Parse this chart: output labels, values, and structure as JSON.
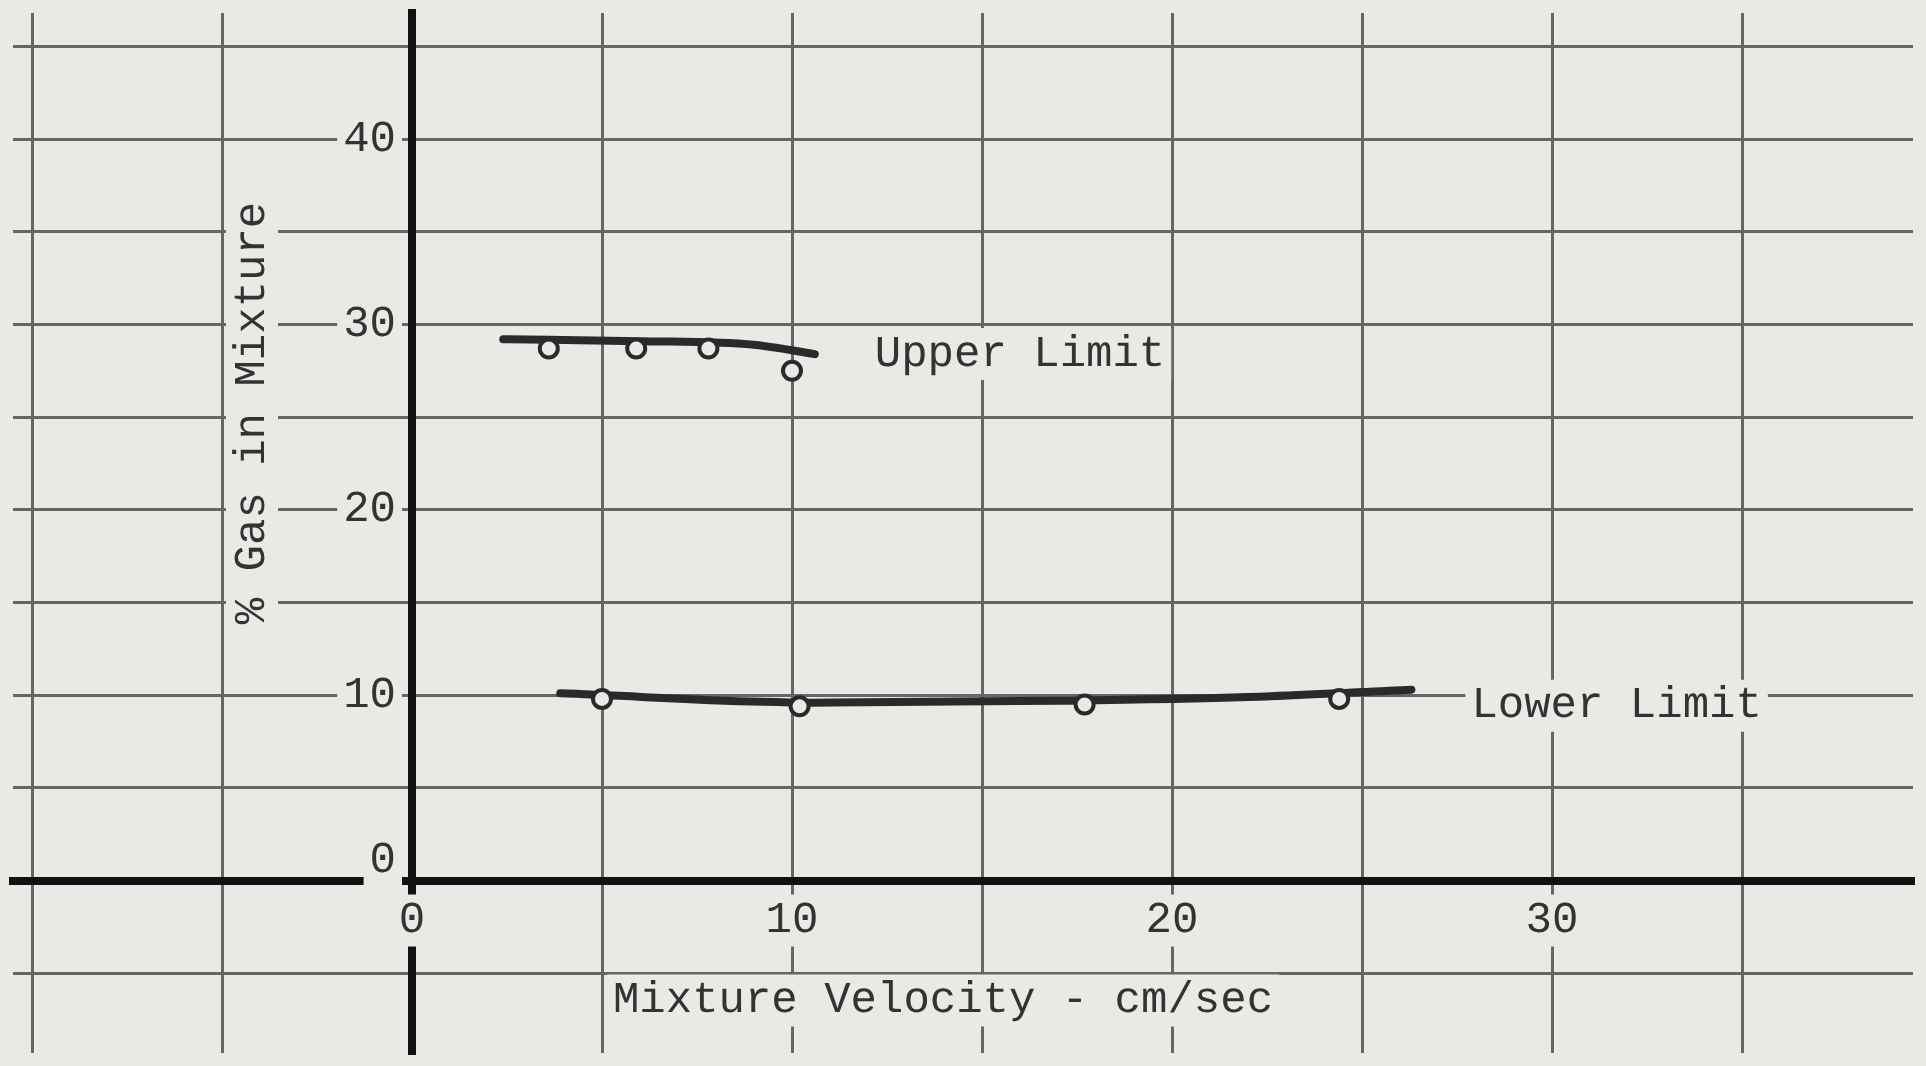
{
  "chart_data": {
    "type": "scatter",
    "xlabel": "Mixture Velocity - cm/sec",
    "ylabel": "% Gas in Mixture",
    "xlim": [
      -10.5,
      39.5
    ],
    "ylim": [
      -9.3,
      46.8
    ],
    "xticks": [
      {
        "value": -10,
        "label": null
      },
      {
        "value": -5,
        "label": null
      },
      0,
      {
        "value": 5,
        "label": null
      },
      10,
      {
        "value": 15,
        "label": null
      },
      20,
      {
        "value": 25,
        "label": null
      },
      30,
      {
        "value": 35,
        "label": null
      }
    ],
    "yticks": [
      {
        "value": -5,
        "label": null
      },
      0,
      {
        "value": 5,
        "label": null
      },
      10,
      {
        "value": 15,
        "label": null
      },
      20,
      {
        "value": 25,
        "label": null
      },
      30,
      {
        "value": 35,
        "label": null
      },
      40,
      {
        "value": 45,
        "label": null
      }
    ],
    "grid": true,
    "series": [
      {
        "color": "#2a2a2a",
        "x": [
          3.6,
          5.9,
          7.8,
          10.0
        ],
        "values": [
          28.7,
          28.7,
          28.7,
          27.5
        ]
      },
      {
        "color": "#2a2a2a",
        "x": [
          5.0,
          10.2,
          17.7,
          24.4
        ],
        "values": [
          9.8,
          9.4,
          9.5,
          9.8
        ]
      },
      {
        "name": "Upper Limit",
        "type": "line",
        "color": "#2a2a2a",
        "x": [
          2.4,
          6.0,
          9.0,
          10.6
        ],
        "values": [
          29.2,
          29.1,
          28.9,
          28.4
        ]
      },
      {
        "name": "Lower Limit",
        "type": "line",
        "color": "#2a2a2a",
        "x": [
          3.9,
          10.6,
          17.0,
          22.0,
          26.3
        ],
        "values": [
          10.1,
          9.6,
          9.7,
          9.9,
          10.3
        ]
      }
    ]
  }
}
